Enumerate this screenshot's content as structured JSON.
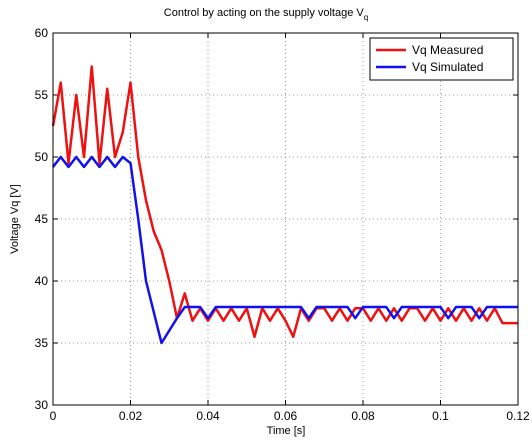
{
  "chart_data": {
    "type": "line",
    "title": {
      "text": "Control by acting on the supply voltage V",
      "subscript": "q"
    },
    "x_label": "Time [s]",
    "y_label": "Voltage Vq [V]",
    "x": [
      0,
      0.002,
      0.004,
      0.006,
      0.008,
      0.01,
      0.012,
      0.014,
      0.016,
      0.018,
      0.02,
      0.022,
      0.024,
      0.026,
      0.028,
      0.03,
      0.032,
      0.034,
      0.036,
      0.038,
      0.04,
      0.042,
      0.044,
      0.046,
      0.048,
      0.05,
      0.052,
      0.054,
      0.056,
      0.058,
      0.06,
      0.062,
      0.064,
      0.066,
      0.068,
      0.07,
      0.072,
      0.074,
      0.076,
      0.078,
      0.08,
      0.082,
      0.084,
      0.086,
      0.088,
      0.09,
      0.092,
      0.094,
      0.096,
      0.098,
      0.1,
      0.102,
      0.104,
      0.106,
      0.108,
      0.11,
      0.112,
      0.114,
      0.116,
      0.118,
      0.12
    ],
    "series": [
      {
        "name": "Vq Measured",
        "color": "#ee1111",
        "values": [
          52.5,
          56,
          49.5,
          55,
          50,
          57.3,
          49.5,
          55.5,
          50,
          52,
          56,
          50,
          46.5,
          44,
          42.5,
          40,
          37,
          39,
          36.8,
          37.8,
          36.8,
          37.8,
          36.8,
          37.8,
          36.8,
          37.8,
          35.5,
          37.8,
          36.8,
          37.8,
          36.8,
          35.5,
          37.8,
          36.8,
          37.8,
          37.8,
          36.8,
          37.8,
          36.8,
          37.8,
          37.8,
          36.8,
          37.8,
          36.8,
          37.8,
          36.8,
          37.8,
          37.8,
          36.8,
          37.8,
          36.8,
          37.8,
          36.8,
          37.8,
          36.8,
          37.8,
          36.8,
          37.8,
          36.6,
          36.6,
          36.6
        ]
      },
      {
        "name": "Vq Simulated",
        "color": "#1111ee",
        "values": [
          49.2,
          50,
          49.2,
          50,
          49.2,
          50,
          49.2,
          50,
          49.2,
          50,
          49.5,
          45,
          40,
          37.5,
          35,
          36,
          37,
          37.9,
          37.9,
          37.9,
          37,
          37.9,
          37.9,
          37.9,
          37.9,
          37.9,
          37.9,
          37.9,
          37.9,
          37.9,
          37.9,
          37.9,
          37.9,
          37,
          37.9,
          37.9,
          37.9,
          37.9,
          37.9,
          37,
          37.9,
          37.9,
          37.9,
          37.9,
          37,
          37.9,
          37.9,
          37.9,
          37.9,
          37.9,
          37.9,
          37,
          37.9,
          37.9,
          37.9,
          37,
          37.9,
          37.9,
          37.9,
          37.9,
          37.9
        ]
      }
    ],
    "xlim": [
      0,
      0.12
    ],
    "xticks": [
      0,
      0.02,
      0.04,
      0.06,
      0.08,
      0.1,
      0.12
    ],
    "ylim": [
      30,
      60
    ],
    "yticks": [
      30,
      35,
      40,
      45,
      50,
      55,
      60
    ],
    "grid": true,
    "legend": "upper right"
  }
}
